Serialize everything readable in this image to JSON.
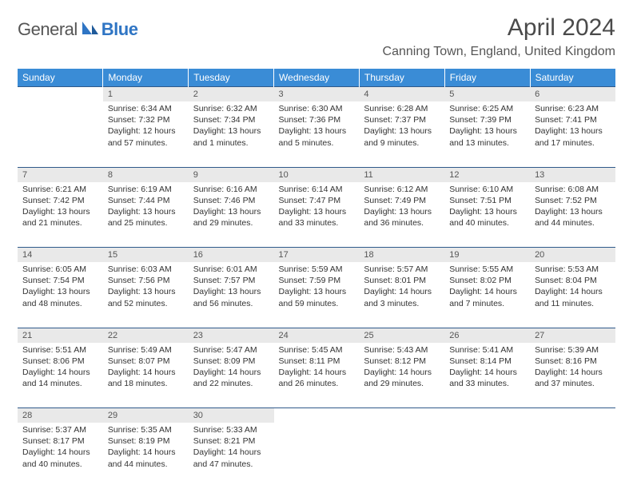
{
  "logo": {
    "text1": "General",
    "text2": "Blue"
  },
  "title": "April 2024",
  "location": "Canning Town, England, United Kingdom",
  "colors": {
    "header_bg": "#3a8cd6",
    "header_text": "#ffffff",
    "daynum_bg": "#e9e9e9",
    "row_divider": "#2f5a8a",
    "logo_blue": "#2f75c4"
  },
  "weekdays": [
    "Sunday",
    "Monday",
    "Tuesday",
    "Wednesday",
    "Thursday",
    "Friday",
    "Saturday"
  ],
  "weeks": [
    {
      "nums": [
        "",
        "1",
        "2",
        "3",
        "4",
        "5",
        "6"
      ],
      "cells": [
        null,
        {
          "sunrise": "Sunrise: 6:34 AM",
          "sunset": "Sunset: 7:32 PM",
          "day": "Daylight: 12 hours and 57 minutes."
        },
        {
          "sunrise": "Sunrise: 6:32 AM",
          "sunset": "Sunset: 7:34 PM",
          "day": "Daylight: 13 hours and 1 minutes."
        },
        {
          "sunrise": "Sunrise: 6:30 AM",
          "sunset": "Sunset: 7:36 PM",
          "day": "Daylight: 13 hours and 5 minutes."
        },
        {
          "sunrise": "Sunrise: 6:28 AM",
          "sunset": "Sunset: 7:37 PM",
          "day": "Daylight: 13 hours and 9 minutes."
        },
        {
          "sunrise": "Sunrise: 6:25 AM",
          "sunset": "Sunset: 7:39 PM",
          "day": "Daylight: 13 hours and 13 minutes."
        },
        {
          "sunrise": "Sunrise: 6:23 AM",
          "sunset": "Sunset: 7:41 PM",
          "day": "Daylight: 13 hours and 17 minutes."
        }
      ]
    },
    {
      "nums": [
        "7",
        "8",
        "9",
        "10",
        "11",
        "12",
        "13"
      ],
      "cells": [
        {
          "sunrise": "Sunrise: 6:21 AM",
          "sunset": "Sunset: 7:42 PM",
          "day": "Daylight: 13 hours and 21 minutes."
        },
        {
          "sunrise": "Sunrise: 6:19 AM",
          "sunset": "Sunset: 7:44 PM",
          "day": "Daylight: 13 hours and 25 minutes."
        },
        {
          "sunrise": "Sunrise: 6:16 AM",
          "sunset": "Sunset: 7:46 PM",
          "day": "Daylight: 13 hours and 29 minutes."
        },
        {
          "sunrise": "Sunrise: 6:14 AM",
          "sunset": "Sunset: 7:47 PM",
          "day": "Daylight: 13 hours and 33 minutes."
        },
        {
          "sunrise": "Sunrise: 6:12 AM",
          "sunset": "Sunset: 7:49 PM",
          "day": "Daylight: 13 hours and 36 minutes."
        },
        {
          "sunrise": "Sunrise: 6:10 AM",
          "sunset": "Sunset: 7:51 PM",
          "day": "Daylight: 13 hours and 40 minutes."
        },
        {
          "sunrise": "Sunrise: 6:08 AM",
          "sunset": "Sunset: 7:52 PM",
          "day": "Daylight: 13 hours and 44 minutes."
        }
      ]
    },
    {
      "nums": [
        "14",
        "15",
        "16",
        "17",
        "18",
        "19",
        "20"
      ],
      "cells": [
        {
          "sunrise": "Sunrise: 6:05 AM",
          "sunset": "Sunset: 7:54 PM",
          "day": "Daylight: 13 hours and 48 minutes."
        },
        {
          "sunrise": "Sunrise: 6:03 AM",
          "sunset": "Sunset: 7:56 PM",
          "day": "Daylight: 13 hours and 52 minutes."
        },
        {
          "sunrise": "Sunrise: 6:01 AM",
          "sunset": "Sunset: 7:57 PM",
          "day": "Daylight: 13 hours and 56 minutes."
        },
        {
          "sunrise": "Sunrise: 5:59 AM",
          "sunset": "Sunset: 7:59 PM",
          "day": "Daylight: 13 hours and 59 minutes."
        },
        {
          "sunrise": "Sunrise: 5:57 AM",
          "sunset": "Sunset: 8:01 PM",
          "day": "Daylight: 14 hours and 3 minutes."
        },
        {
          "sunrise": "Sunrise: 5:55 AM",
          "sunset": "Sunset: 8:02 PM",
          "day": "Daylight: 14 hours and 7 minutes."
        },
        {
          "sunrise": "Sunrise: 5:53 AM",
          "sunset": "Sunset: 8:04 PM",
          "day": "Daylight: 14 hours and 11 minutes."
        }
      ]
    },
    {
      "nums": [
        "21",
        "22",
        "23",
        "24",
        "25",
        "26",
        "27"
      ],
      "cells": [
        {
          "sunrise": "Sunrise: 5:51 AM",
          "sunset": "Sunset: 8:06 PM",
          "day": "Daylight: 14 hours and 14 minutes."
        },
        {
          "sunrise": "Sunrise: 5:49 AM",
          "sunset": "Sunset: 8:07 PM",
          "day": "Daylight: 14 hours and 18 minutes."
        },
        {
          "sunrise": "Sunrise: 5:47 AM",
          "sunset": "Sunset: 8:09 PM",
          "day": "Daylight: 14 hours and 22 minutes."
        },
        {
          "sunrise": "Sunrise: 5:45 AM",
          "sunset": "Sunset: 8:11 PM",
          "day": "Daylight: 14 hours and 26 minutes."
        },
        {
          "sunrise": "Sunrise: 5:43 AM",
          "sunset": "Sunset: 8:12 PM",
          "day": "Daylight: 14 hours and 29 minutes."
        },
        {
          "sunrise": "Sunrise: 5:41 AM",
          "sunset": "Sunset: 8:14 PM",
          "day": "Daylight: 14 hours and 33 minutes."
        },
        {
          "sunrise": "Sunrise: 5:39 AM",
          "sunset": "Sunset: 8:16 PM",
          "day": "Daylight: 14 hours and 37 minutes."
        }
      ]
    },
    {
      "nums": [
        "28",
        "29",
        "30",
        "",
        "",
        "",
        ""
      ],
      "cells": [
        {
          "sunrise": "Sunrise: 5:37 AM",
          "sunset": "Sunset: 8:17 PM",
          "day": "Daylight: 14 hours and 40 minutes."
        },
        {
          "sunrise": "Sunrise: 5:35 AM",
          "sunset": "Sunset: 8:19 PM",
          "day": "Daylight: 14 hours and 44 minutes."
        },
        {
          "sunrise": "Sunrise: 5:33 AM",
          "sunset": "Sunset: 8:21 PM",
          "day": "Daylight: 14 hours and 47 minutes."
        },
        null,
        null,
        null,
        null
      ]
    }
  ]
}
